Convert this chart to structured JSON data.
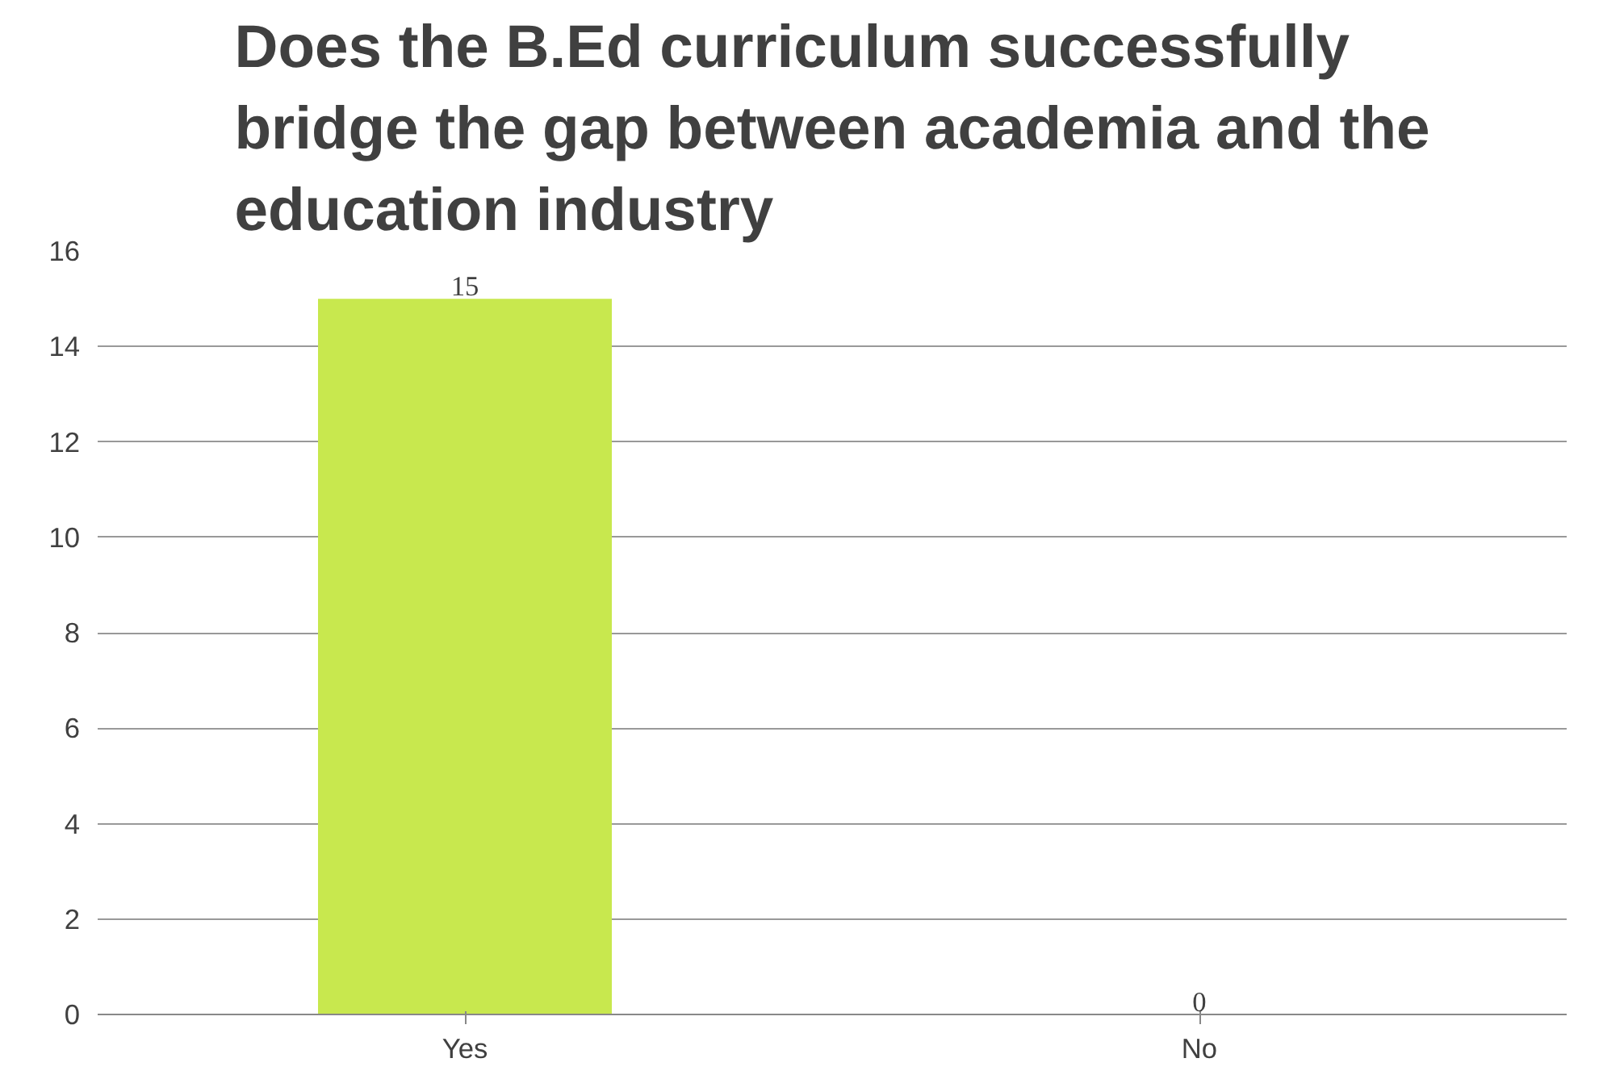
{
  "chart_data": {
    "type": "bar",
    "title": "Does the B.Ed curriculum successfully bridge the gap between academia and the education industry",
    "categories": [
      "Yes",
      "No"
    ],
    "values": [
      15,
      0
    ],
    "color": "#c8e84e",
    "ylim": [
      0,
      16
    ],
    "yticks": [
      0,
      2,
      4,
      6,
      8,
      10,
      12,
      14,
      16
    ],
    "grid": "y",
    "data_labels": true
  }
}
